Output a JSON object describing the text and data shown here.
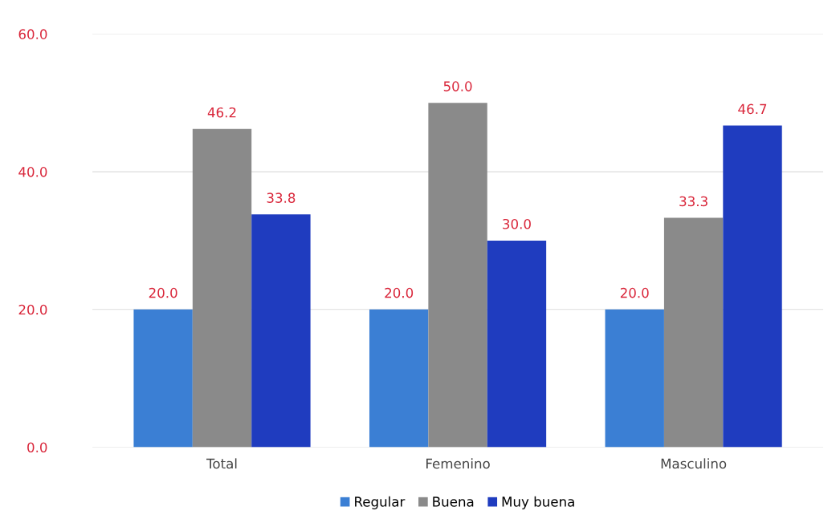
{
  "chart_data": {
    "type": "bar",
    "categories": [
      "Total",
      "Femenino",
      "Masculino"
    ],
    "series": [
      {
        "name": "Regular",
        "color": "#3b7fd4",
        "values": [
          20.0,
          20.0,
          20.0
        ],
        "value_labels": [
          "20.0",
          "20.0",
          "20.0"
        ]
      },
      {
        "name": "Buena",
        "color": "#8a8a8a",
        "values": [
          46.2,
          50.0,
          33.3
        ],
        "value_labels": [
          "46.2",
          "50.0",
          "33.3"
        ]
      },
      {
        "name": "Muy buena",
        "color": "#1f3cbf",
        "values": [
          33.8,
          30.0,
          46.7
        ],
        "value_labels": [
          "33.8",
          "30.0",
          "46.7"
        ]
      }
    ],
    "ylim": [
      0,
      60
    ],
    "yticks": [
      {
        "value": 0,
        "label": "0.0"
      },
      {
        "value": 20,
        "label": "20.0"
      },
      {
        "value": 40,
        "label": "40.0"
      },
      {
        "value": 60,
        "label": "60.0"
      }
    ],
    "grid": "y",
    "legend": "bottom"
  }
}
